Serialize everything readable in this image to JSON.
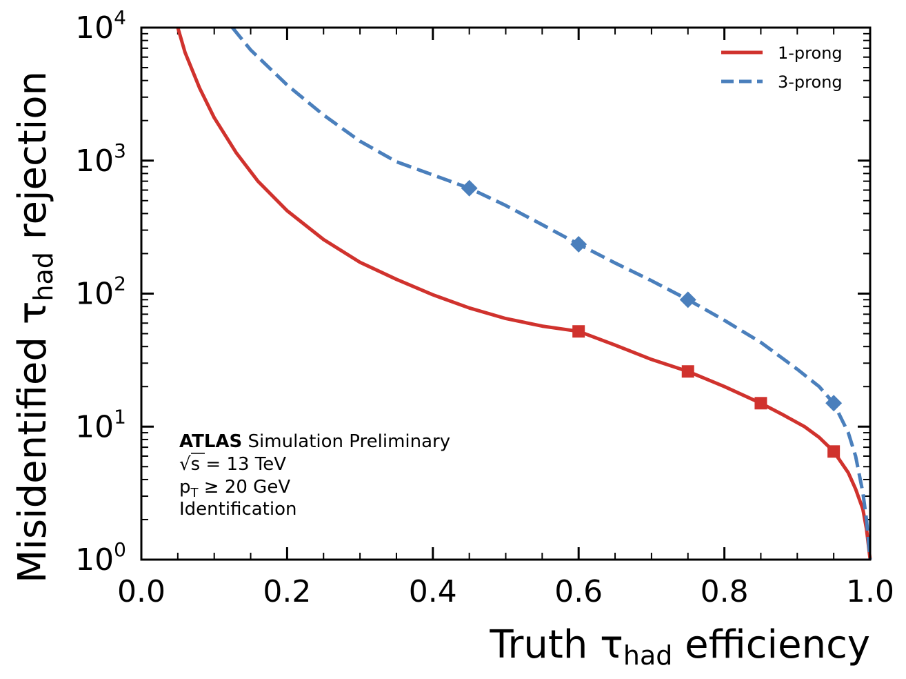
{
  "chart_data": {
    "type": "line",
    "x_scale": "linear",
    "y_scale": "log",
    "xlim": [
      0.0,
      1.0
    ],
    "ylim": [
      1,
      10000
    ],
    "xticks": [
      0.0,
      0.2,
      0.4,
      0.6,
      0.8,
      1.0
    ],
    "xtick_labels": [
      "0.0",
      "0.2",
      "0.4",
      "0.6",
      "0.8",
      "1.0"
    ],
    "yticks": [
      1,
      10,
      100,
      1000,
      10000
    ],
    "ytick_base": "10",
    "ytick_exponents": [
      "0",
      "1",
      "2",
      "3",
      "4"
    ],
    "xlabel": {
      "main": "Truth τ",
      "sub": "had",
      "tail": " efficiency"
    },
    "ylabel": {
      "main": "Misidentified τ",
      "sub": "had",
      "tail": " rejection"
    },
    "legend": {
      "position": "top-right",
      "entries": [
        {
          "label": "1-prong",
          "color": "#d0322d",
          "style": "solid"
        },
        {
          "label": "3-prong",
          "color": "#4a7fbc",
          "style": "dashed"
        }
      ]
    },
    "annotation": {
      "experiment": "ATLAS",
      "status": " Simulation Preliminary",
      "energy_prefix": "√",
      "energy": "s = 13 TeV",
      "pt_main": "p",
      "pt_sub": "T",
      "pt_tail": " ≥  20 GeV",
      "selection": "Identification"
    },
    "series": [
      {
        "name": "1-prong",
        "color": "#d0322d",
        "dashed": false,
        "marker": "square",
        "x": [
          0.05,
          0.06,
          0.08,
          0.1,
          0.13,
          0.16,
          0.2,
          0.25,
          0.3,
          0.35,
          0.4,
          0.45,
          0.5,
          0.55,
          0.6,
          0.65,
          0.7,
          0.75,
          0.8,
          0.85,
          0.88,
          0.91,
          0.93,
          0.95,
          0.97,
          0.98,
          0.99,
          0.995,
          1.0
        ],
        "y": [
          10000,
          6500,
          3500,
          2100,
          1150,
          700,
          420,
          255,
          172,
          128,
          98,
          78,
          65,
          57,
          52,
          41,
          32,
          26,
          20,
          15,
          12.3,
          10,
          8.3,
          6.5,
          4.5,
          3.4,
          2.4,
          1.7,
          1.0
        ],
        "marker_x": [
          0.6,
          0.75,
          0.85,
          0.95
        ],
        "marker_y": [
          52,
          26,
          15,
          6.5
        ]
      },
      {
        "name": "3-prong",
        "color": "#4a7fbc",
        "dashed": true,
        "marker": "diamond",
        "x": [
          0.125,
          0.15,
          0.2,
          0.25,
          0.3,
          0.35,
          0.4,
          0.45,
          0.5,
          0.55,
          0.6,
          0.65,
          0.7,
          0.75,
          0.8,
          0.85,
          0.9,
          0.93,
          0.95,
          0.97,
          0.98,
          0.99,
          0.995,
          1.0
        ],
        "y": [
          10000,
          6800,
          3700,
          2200,
          1400,
          980,
          780,
          620,
          460,
          330,
          235,
          170,
          125,
          90,
          63,
          43,
          27,
          20,
          15,
          9,
          6,
          3.2,
          2.0,
          1.0
        ],
        "marker_x": [
          0.45,
          0.6,
          0.75,
          0.95
        ],
        "marker_y": [
          620,
          235,
          90,
          15
        ]
      }
    ]
  }
}
